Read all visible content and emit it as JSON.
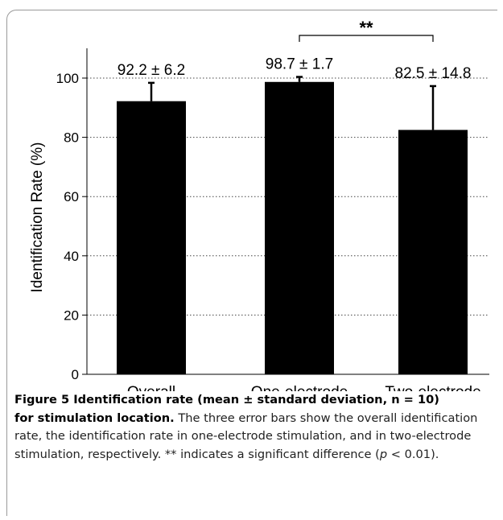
{
  "chart_data": {
    "type": "bar",
    "categories": [
      "Overall",
      "One-electrode",
      "Two-electrode"
    ],
    "values": [
      92.2,
      98.7,
      82.5
    ],
    "errors": [
      6.2,
      1.7,
      14.8
    ],
    "value_labels": [
      "92.2 ± 6.2",
      "98.7 ± 1.7",
      "82.5 ± 14.8"
    ],
    "title": "",
    "xlabel": "",
    "ylabel": "Identification Rate (%)",
    "ylim": [
      0,
      100
    ],
    "yticks": [
      0,
      20,
      40,
      60,
      80,
      100
    ],
    "ytick_labels": [
      "0",
      "20",
      "40",
      "60",
      "80",
      "100"
    ],
    "grid": "horizontal dotted",
    "bar_color": "#000000",
    "significance": {
      "pair": [
        "One-electrode",
        "Two-electrode"
      ],
      "label": "**"
    }
  },
  "caption": {
    "figure_label": "Figure 5",
    "title_part1": " Identification rate (mean ± standard deviation, n = 10)",
    "title_part2": "for stimulation location.",
    "body_1": " The three error bars show the overall identification rate, the identification rate in one-electrode stimulation, and in two-electrode stimulation, respectively. ** indicates a significant difference (",
    "p_symbol": "p",
    "body_2": " < 0.01)."
  }
}
